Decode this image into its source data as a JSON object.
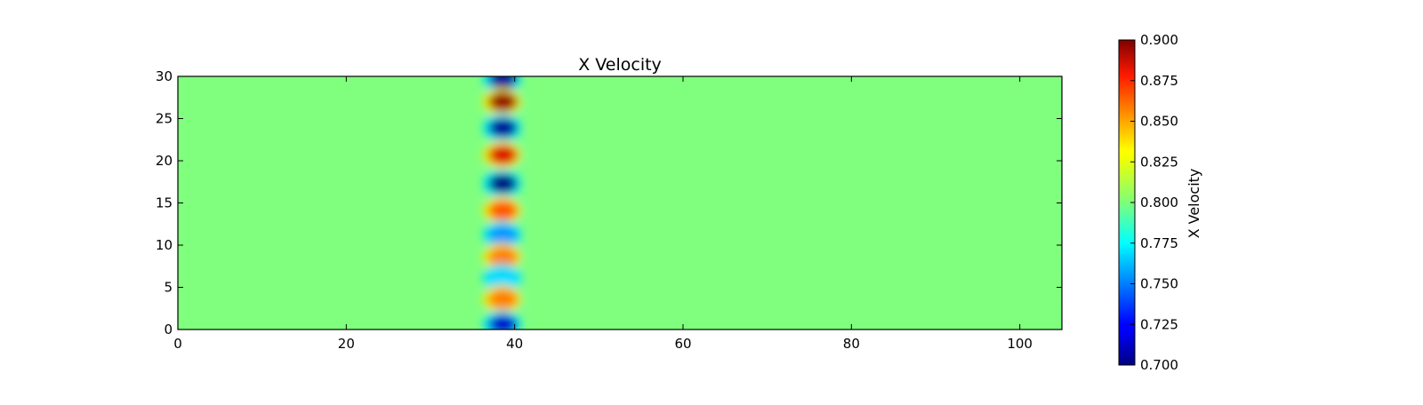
{
  "chart_data": {
    "type": "heatmap",
    "title": "X Velocity",
    "xlabel": "",
    "ylabel": "",
    "xlim": [
      0,
      105
    ],
    "ylim": [
      0,
      30
    ],
    "x_ticks": [
      0,
      20,
      40,
      60,
      80,
      100
    ],
    "y_ticks": [
      0,
      5,
      10,
      15,
      20,
      25,
      30
    ],
    "colormap": "jet",
    "background_value": 0.8,
    "colorbar": {
      "label": "X Velocity",
      "range": [
        0.7,
        0.9
      ],
      "ticks": [
        "0.700",
        "0.725",
        "0.750",
        "0.775",
        "0.800",
        "0.825",
        "0.850",
        "0.875",
        "0.900"
      ]
    },
    "features": [
      {
        "x": 38.5,
        "y": 29.7,
        "value": 0.705
      },
      {
        "x": 38.5,
        "y": 27.0,
        "value": 0.895
      },
      {
        "x": 38.5,
        "y": 23.9,
        "value": 0.705
      },
      {
        "x": 38.5,
        "y": 20.7,
        "value": 0.882
      },
      {
        "x": 38.5,
        "y": 17.3,
        "value": 0.7
      },
      {
        "x": 38.5,
        "y": 14.1,
        "value": 0.858
      },
      {
        "x": 38.5,
        "y": 11.2,
        "value": 0.755
      },
      {
        "x": 38.5,
        "y": 8.6,
        "value": 0.85
      },
      {
        "x": 38.5,
        "y": 6.1,
        "value": 0.768
      },
      {
        "x": 38.5,
        "y": 3.6,
        "value": 0.85
      },
      {
        "x": 38.5,
        "y": 0.6,
        "value": 0.715
      }
    ]
  }
}
